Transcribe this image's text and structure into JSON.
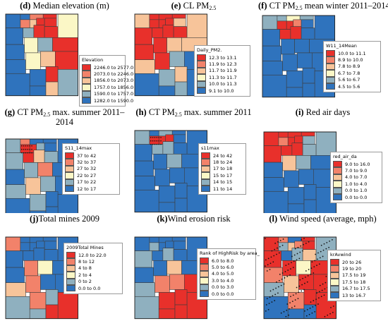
{
  "colors": {
    "red": "#e8302b",
    "salmon": "#f2826a",
    "peach": "#f7c49a",
    "cream": "#fbf7c6",
    "grayblue": "#8fb0bf",
    "blue": "#2f73bd"
  },
  "panels": [
    {
      "id": "d",
      "letter": "(d)",
      "title_pre": " Median elevation (m)",
      "sub": "",
      "title_post": "",
      "title_line2": "",
      "legend": {
        "title": "Elevation",
        "items": [
          "2246.0 to 2577.0",
          "2073.0 to 2246.0",
          "1856.0 to 2073.0",
          "1757.0 to 1856.0",
          "1590.0 to 1757.0",
          "1282.0 to 1590.0"
        ]
      }
    },
    {
      "id": "e",
      "letter": "(e)",
      "title_pre": " CL PM",
      "sub": "2.5",
      "title_post": "",
      "title_line2": "",
      "legend": {
        "title": "Daily_PM2.",
        "items": [
          "12.3 to 13.1",
          "11.9 to 12.3",
          "11.7 to 11.9",
          "11.3 to 11.7",
          "10.0 to 11.3",
          "9.1 to 10.0"
        ]
      }
    },
    {
      "id": "f",
      "letter": "(f)",
      "title_pre": " CT PM",
      "sub": "2.5",
      "title_post": " mean winter 2011–2014",
      "title_line2": "",
      "legend": {
        "title": "W11_14Mean",
        "items": [
          "10.0 to 11.1",
          "8.9 to 10.0",
          "7.8 to 8.9",
          "6.7 to 7.8",
          "5.6 to 6.7",
          "4.5 to 5.6"
        ]
      }
    },
    {
      "id": "g",
      "letter": "(g)",
      "title_pre": " CT PM",
      "sub": "2.5",
      "title_post": " max. summer 2011–",
      "title_line2": "2014",
      "legend": {
        "title": "S11_14max",
        "items": [
          "37 to 42",
          "32 to 37",
          "27 to 32",
          "22 to 27",
          "17 to 22",
          "12 to 17"
        ]
      }
    },
    {
      "id": "h",
      "letter": "(h)",
      "title_pre": " CT PM",
      "sub": "2.5",
      "title_post": " max. summer 2011",
      "title_line2": "",
      "legend": {
        "title": "s11max",
        "items": [
          "24 to 42",
          "18 to 24",
          "17 to 18",
          "15 to 17",
          "14 to 15",
          "11 to 14"
        ]
      }
    },
    {
      "id": "i",
      "letter": "(i)",
      "title_pre": " Red air days",
      "sub": "",
      "title_post": "",
      "title_line2": "",
      "legend": {
        "title": "red_air_da",
        "items": [
          "9.0 to 16.0",
          "7.0 to 9.0",
          "4.0 to 7.0",
          "1.0 to 4.0",
          "0.0 to 1.0",
          "0.0 to 0.0"
        ]
      }
    },
    {
      "id": "j",
      "letter": "(j)",
      "title_pre": "Total mines 2009",
      "sub": "",
      "title_post": "",
      "title_line2": "",
      "legend": {
        "title": "2009Total Mines",
        "items": [
          "12.0 to 22.0",
          "8 to 12",
          "4 to 8",
          "2 to 4",
          "0 to 2",
          "0.0 to 0.0"
        ]
      }
    },
    {
      "id": "k",
      "letter": "(k)",
      "title_pre": "Wind erosion risk",
      "sub": "",
      "title_post": "",
      "title_line2": "",
      "legend": {
        "title": "Rank of HighRisk by area_",
        "items": [
          "6.0 to 8.0",
          "5.0 to 6.0",
          "4.0 to 5.0",
          "3.0 to 4.0",
          "0.0 to 3.0",
          "0.0 to 0.0"
        ]
      }
    },
    {
      "id": "l",
      "letter": "(l)",
      "title_pre": " Wind speed (average, mph)",
      "sub": "",
      "title_post": "",
      "title_line2": "",
      "legend": {
        "title": "krAvwind",
        "items": [
          "20 to 26",
          "19 to 20",
          "17.5 to 19",
          "17.5 to 18",
          "16.7 to 17.5",
          "13 to 16.7"
        ]
      }
    }
  ]
}
